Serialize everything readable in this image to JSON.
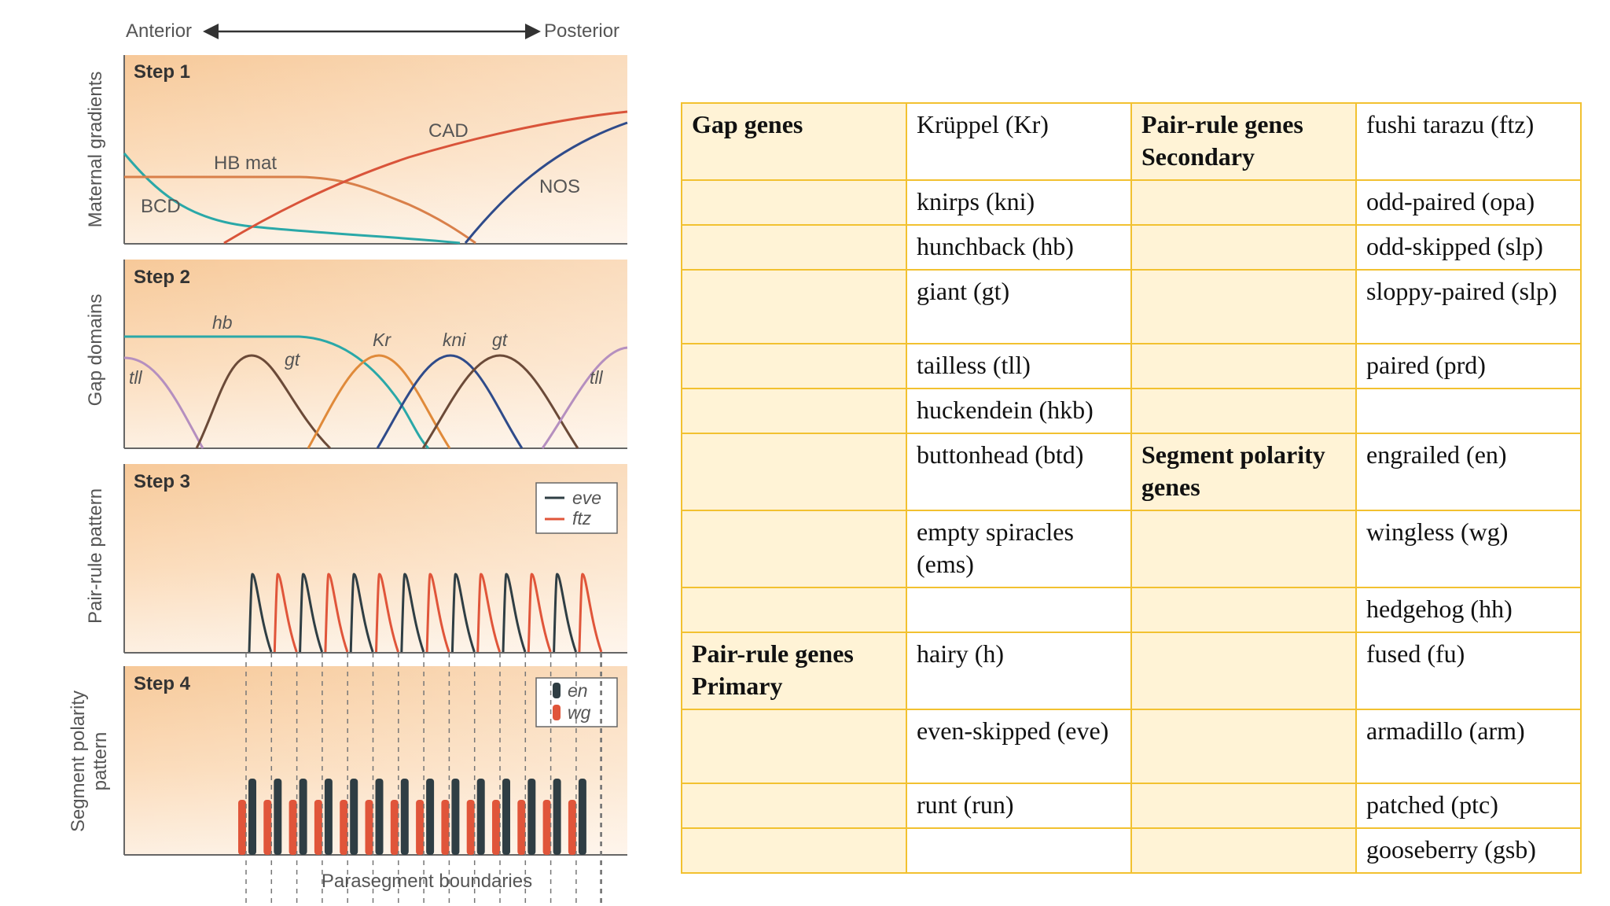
{
  "diagram": {
    "axis": {
      "anterior": "Anterior",
      "posterior": "Posterior"
    },
    "side_labels": {
      "step1": "Maternal gradients",
      "step2": "Gap domains",
      "step3": "Pair-rule pattern",
      "step4_line1": "Segment polarity",
      "step4_line2": "pattern"
    },
    "steps": [
      "Step 1",
      "Step 2",
      "Step 3",
      "Step 4"
    ],
    "step1_labels": {
      "cad": "CAD",
      "hb_mat": "HB mat",
      "bcd": "BCD",
      "nos": "NOS"
    },
    "step2_labels": {
      "hb": "hb",
      "tll_left": "tll",
      "gt_left": "gt",
      "kr": "Kr",
      "kni": "kni",
      "gt_right": "gt",
      "tll_right": "tll"
    },
    "step3_legend": {
      "eve": "eve",
      "ftz": "ftz"
    },
    "step4_legend": {
      "en": "en",
      "wg": "wg"
    },
    "footer": "Parasegment boundaries",
    "colors": {
      "bcd": "#2aa8a8",
      "hb_mat": "#d9804a",
      "cad": "#d9543a",
      "nos": "#2f4b8a",
      "tll": "#b58fbf",
      "hb": "#2aa8a8",
      "gt": "#6b4a38",
      "kr": "#e08a3a",
      "kni": "#2f4b8a",
      "eve": "#2f3e44",
      "ftz": "#e0553a",
      "en": "#2f3e44",
      "wg": "#e0553a",
      "panel_light": "#fdecd7",
      "panel_dark": "#f7c999"
    }
  },
  "table": {
    "rows": [
      [
        "Gap genes",
        "Krüppel (Kr)",
        "Pair-rule genes Secondary",
        "fushi tarazu (ftz)"
      ],
      [
        "",
        "knirps (kni)",
        "",
        "odd-paired (opa)"
      ],
      [
        "",
        "hunchback (hb)",
        "",
        "odd-skipped (slp)"
      ],
      [
        "",
        "giant (gt)",
        "",
        "sloppy-paired (slp)"
      ],
      [
        "",
        "tailless (tll)",
        "",
        "paired (prd)"
      ],
      [
        "",
        "huckendein (hkb)",
        "",
        ""
      ],
      [
        "",
        "buttonhead (btd)",
        "Segment polarity genes",
        "engrailed (en)"
      ],
      [
        "",
        "empty spiracles (ems)",
        "",
        "wingless (wg)"
      ],
      [
        "",
        "",
        "",
        "hedgehog (hh)"
      ],
      [
        "Pair-rule genes Primary",
        "hairy (h)",
        "",
        "fused (fu)"
      ],
      [
        "",
        "even-skipped (eve)",
        "",
        "armadillo (arm)"
      ],
      [
        "",
        "runt (run)",
        "",
        "patched (ptc)"
      ],
      [
        "",
        "",
        "",
        "gooseberry (gsb)"
      ]
    ]
  }
}
